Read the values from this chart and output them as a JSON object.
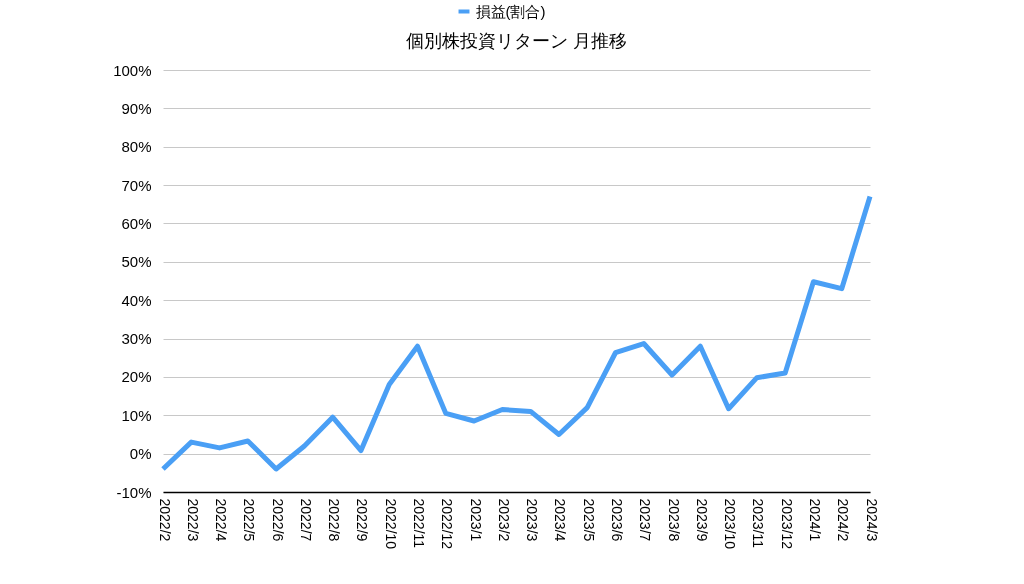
{
  "chart_data": {
    "type": "line",
    "title": "個別株投資リターン 月推移",
    "categories": [
      "2022/2",
      "2022/3",
      "2022/4",
      "2022/5",
      "2022/6",
      "2022/7",
      "2022/8",
      "2022/9",
      "2022/10",
      "2022/11",
      "2022/12",
      "2023/1",
      "2023/2",
      "2023/3",
      "2023/4",
      "2023/5",
      "2023/6",
      "2023/7",
      "2023/8",
      "2023/9",
      "2023/10",
      "2023/11",
      "2023/12",
      "2024/1",
      "2024/2",
      "2024/3"
    ],
    "series": [
      {
        "name": "損益(割合)",
        "color": "#4a9ff5",
        "values": [
          -4,
          3,
          1.5,
          3.3,
          -4,
          2,
          9.5,
          0.8,
          18,
          28,
          10.5,
          8.5,
          11.5,
          11,
          5,
          12,
          26.3,
          28.7,
          20.5,
          28,
          11.7,
          19.8,
          21,
          44.8,
          43,
          67
        ]
      }
    ],
    "ylim": [
      -10,
      100
    ],
    "yticks": [
      {
        "value": -10,
        "label": "-10%"
      },
      {
        "value": 0,
        "label": "0%"
      },
      {
        "value": 10,
        "label": "10%"
      },
      {
        "value": 20,
        "label": "20%"
      },
      {
        "value": 30,
        "label": "30%"
      },
      {
        "value": 40,
        "label": "40%"
      },
      {
        "value": 50,
        "label": "50%"
      },
      {
        "value": 60,
        "label": "60%"
      },
      {
        "value": 70,
        "label": "70%"
      },
      {
        "value": 80,
        "label": "80%"
      },
      {
        "value": 90,
        "label": "90%"
      },
      {
        "value": 100,
        "label": "100%"
      }
    ],
    "grid": "y",
    "legend": "top",
    "marker": "none",
    "line_style": "solid"
  }
}
